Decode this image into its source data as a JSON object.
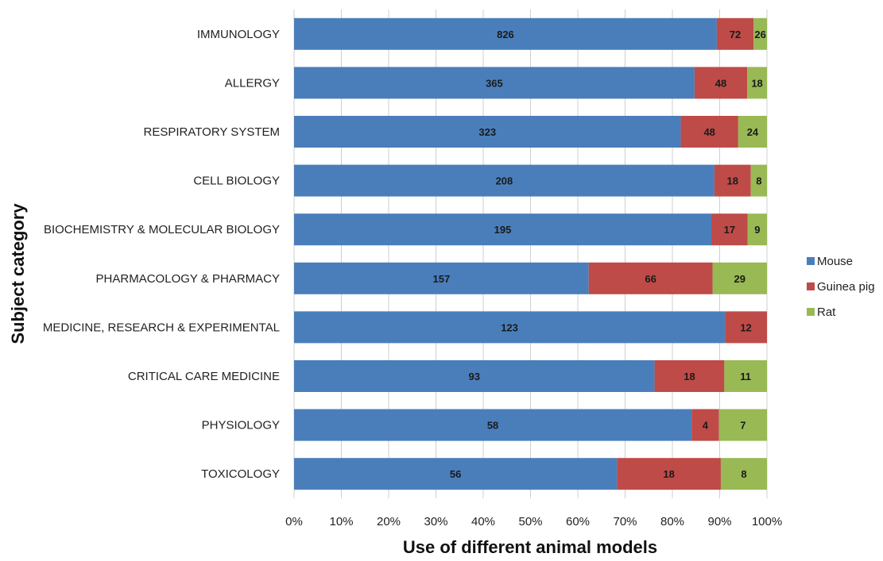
{
  "chart_data": {
    "type": "bar",
    "orientation": "horizontal",
    "stacked": "percent",
    "categories": [
      "IMMUNOLOGY",
      "ALLERGY",
      "RESPIRATORY SYSTEM",
      "CELL BIOLOGY",
      "BIOCHEMISTRY & MOLECULAR BIOLOGY",
      "PHARMACOLOGY & PHARMACY",
      "MEDICINE, RESEARCH & EXPERIMENTAL",
      "CRITICAL CARE MEDICINE",
      "PHYSIOLOGY",
      "TOXICOLOGY"
    ],
    "series": [
      {
        "name": "Mouse",
        "color": "#4a7ebb",
        "values": [
          826,
          365,
          323,
          208,
          195,
          157,
          123,
          93,
          58,
          56
        ]
      },
      {
        "name": "Guinea pig",
        "color": "#be4b48",
        "values": [
          72,
          48,
          48,
          18,
          17,
          66,
          12,
          18,
          4,
          18
        ]
      },
      {
        "name": "Rat",
        "color": "#98b954",
        "values": [
          26,
          18,
          24,
          8,
          9,
          29,
          0,
          11,
          7,
          8
        ]
      }
    ],
    "xlabel": "Use of different animal models",
    "ylabel": "Subject category",
    "xticks": [
      "0%",
      "10%",
      "20%",
      "30%",
      "40%",
      "50%",
      "60%",
      "70%",
      "80%",
      "90%",
      "100%"
    ],
    "xlim": [
      0,
      100
    ],
    "grid": "vertical",
    "legend_position": "right"
  }
}
